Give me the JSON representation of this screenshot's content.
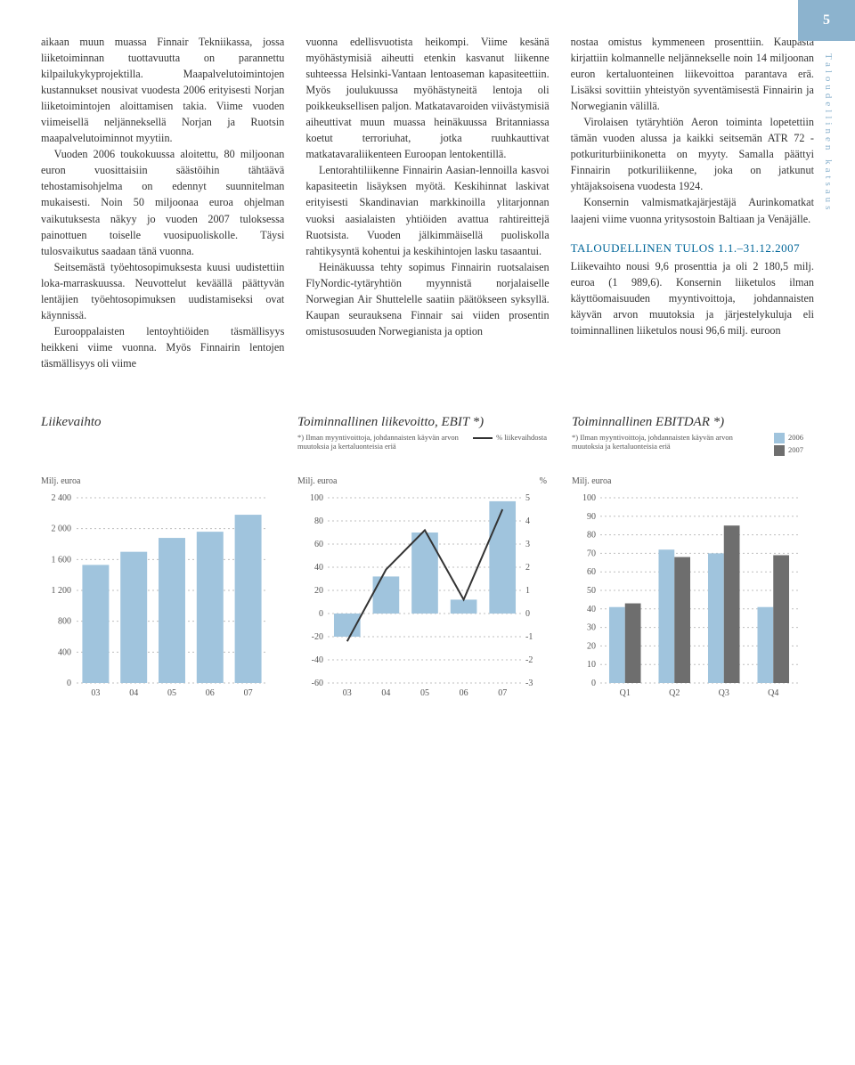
{
  "page_number": "5",
  "side_label": "Taloudellinen katsaus",
  "columns": {
    "col1": {
      "p1": "aikaan muun muassa Finnair Tekniikassa, jossa liiketoiminnan tuottavuutta on parannettu kilpailukykyprojektilla. Maapalvelutoimintojen kustannukset nousivat vuodesta 2006 erityisesti Norjan liiketoimintojen aloittamisen takia. Viime vuoden viimeisellä neljänneksellä Norjan ja Ruotsin maapalvelutoiminnot myytiin.",
      "p2": "Vuoden 2006 toukokuussa aloitettu, 80 miljoonan euron vuosittaisiin säästöihin tähtäävä tehostamisohjelma on edennyt suunnitelman mukaisesti. Noin 50 miljoonaa euroa ohjelman vaikutuksesta näkyy jo vuoden 2007 tuloksessa painottuen toiselle vuosipuoliskolle. Täysi tulosvaikutus saadaan tänä vuonna.",
      "p3": "Seitsemästä työehtosopimuksesta kuusi uudistettiin loka-marraskuussa. Neuvottelut keväällä päättyvän lentäjien työehtosopimuksen uudistamiseksi ovat käynnissä.",
      "p4": "Eurooppalaisten lentoyhtiöiden täsmällisyys heikkeni viime vuonna. Myös Finnairin lentojen täsmällisyys oli viime"
    },
    "col2": {
      "p1": "vuonna edellisvuotista heikompi. Viime kesänä myöhästymisiä aiheutti etenkin kasvanut liikenne suhteessa Helsinki-Vantaan lentoaseman kapasiteettiin. Myös joulukuussa myöhästyneitä lentoja oli poikkeuksellisen paljon. Matkatavaroiden viivästymisiä aiheuttivat muun muassa heinäkuussa Britanniassa koetut terroriuhat, jotka ruuhkauttivat matkatavaraliikenteen Euroopan lentokentillä.",
      "p2": "Lentorahtiliikenne Finnairin Aasian-lennoilla kasvoi kapasiteetin lisäyksen myötä. Keskihinnat laskivat erityisesti Skandinavian markkinoilla ylitarjonnan vuoksi aasialaisten yhtiöiden avattua rahtireittejä Ruotsista. Vuoden jälkimmäisellä puoliskolla rahtikysyntä kohentui ja keskihintojen lasku tasaantui.",
      "p3": "Heinäkuussa tehty sopimus Finnairin ruotsalaisen FlyNordic-tytäryhtiön myynnistä norjalaiselle Norwegian Air Shuttelelle saatiin päätökseen syksyllä. Kaupan seurauksena Finnair sai viiden prosentin omistusosuuden Norwegianista ja option"
    },
    "col3": {
      "p1": "nostaa omistus kymmeneen prosenttiin. Kaupasta kirjattiin kolmannelle neljännekselle noin 14 miljoonan euron kertaluonteinen liikevoittoa parantava erä. Lisäksi sovittiin yhteistyön syventämisestä Finnairin ja Norwegianin välillä.",
      "p2": "Virolaisen tytäryhtiön Aeron toiminta lopetettiin tämän vuoden alussa ja kaikki seitsemän ATR 72 -potkuriturbiinikonetta on myyty. Samalla päättyi Finnairin potkuriliikenne, joka on jatkunut yhtäjaksoisena vuodesta 1924.",
      "p3": "Konsernin valmismatkajärjestäjä Aurinkomatkat laajeni viime vuonna yritysostoin Baltiaan ja Venäjälle.",
      "heading": "TALOUDELLINEN TULOS 1.1.–31.12.2007",
      "p4": "Liikevaihto nousi 9,6 prosenttia ja oli 2 180,5 milj. euroa (1 989,6). Konsernin liiketulos ilman käyttöomaisuuden myyntivoittoja, johdannaisten käyvän arvon muutoksia ja järjestelykuluja eli toiminnallinen liiketulos nousi 96,6 milj. euroon"
    }
  },
  "charts": {
    "liikevaihto": {
      "title": "Liikevaihto",
      "y_label": "Milj. euroa",
      "type": "bar",
      "categories": [
        "03",
        "04",
        "05",
        "06",
        "07"
      ],
      "values": [
        1530,
        1700,
        1880,
        1960,
        2180
      ],
      "ylim": [
        0,
        2400
      ],
      "ytick_step": 400,
      "bar_color": "#A0C4DD",
      "grid_color": "#BFBFBF",
      "text_color": "#555555",
      "bar_width": 0.7
    },
    "ebit": {
      "title": "Toiminnallinen liikevoitto, EBIT *)",
      "footnote": "*) Ilman myyntivoittoja, johdannaisten käyvän arvon muutoksia ja kertaluonteisia eriä",
      "legend_line": "% liikevaihdosta",
      "y_label_left": "Milj. euroa",
      "y_label_right": "%",
      "type": "bar+line",
      "categories": [
        "03",
        "04",
        "05",
        "06",
        "07"
      ],
      "bar_values": [
        -20,
        32,
        70,
        12,
        97
      ],
      "line_values": [
        -1.2,
        1.9,
        3.6,
        0.6,
        4.5
      ],
      "ylim_left": [
        -60,
        100
      ],
      "ytick_left": [
        -60,
        -40,
        -20,
        0,
        20,
        40,
        60,
        80,
        100
      ],
      "ylim_right": [
        -3,
        5
      ],
      "ytick_right": [
        -3,
        -2,
        -1,
        0,
        1,
        2,
        3,
        4,
        5
      ],
      "bar_color": "#A0C4DD",
      "line_color": "#333333",
      "grid_color": "#BFBFBF",
      "text_color": "#555555"
    },
    "ebitdar": {
      "title": "Toiminnallinen EBITDAR *)",
      "footnote": "*) Ilman myyntivoittoja, johdannaisten käyvän arvon muutoksia ja kertaluonteisia eriä",
      "legend_2006": "2006",
      "legend_2007": "2007",
      "y_label": "Milj. euroa",
      "type": "grouped_bar",
      "categories": [
        "Q1",
        "Q2",
        "Q3",
        "Q4"
      ],
      "series": {
        "2006": {
          "color": "#A0C4DD",
          "values": [
            41,
            72,
            70,
            41
          ]
        },
        "2007": {
          "color": "#6E6E6E",
          "values": [
            43,
            68,
            85,
            69
          ]
        }
      },
      "ylim": [
        0,
        100
      ],
      "ytick_step": 10,
      "grid_color": "#BFBFBF",
      "text_color": "#555555"
    }
  }
}
